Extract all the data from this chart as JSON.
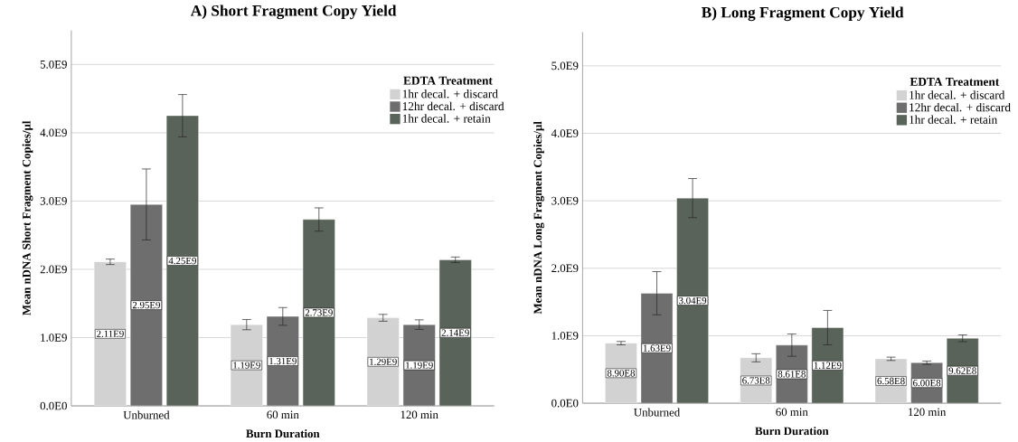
{
  "chart_data": [
    {
      "type": "bar",
      "title": "A) Short Fragment Copy Yield",
      "xlabel": "Burn Duration",
      "ylabel": "Mean nDNA Short Fragment Copies/µl",
      "legend_title": "EDTA Treatment",
      "categories": [
        "Unburned",
        "60 min",
        "120 min"
      ],
      "series": [
        {
          "name": "1hr decal. + discard",
          "color": "#d2d2d2",
          "values": [
            2110000000.0,
            1190000000.0,
            1290000000.0
          ],
          "errors": [
            40000000.0,
            75000000.0,
            50000000.0
          ],
          "value_labels": [
            "2.11E9",
            "1.19E9",
            "1.29E9"
          ]
        },
        {
          "name": "12hr decal. + discard",
          "color": "#6e6e6e",
          "values": [
            2950000000.0,
            1310000000.0,
            1190000000.0
          ],
          "errors": [
            520000000.0,
            130000000.0,
            70000000.0
          ],
          "value_labels": [
            "2.95E9",
            "1.31E9",
            "1.19E9"
          ]
        },
        {
          "name": "1hr decal. + retain",
          "color": "#5a6359",
          "values": [
            4250000000.0,
            2730000000.0,
            2140000000.0
          ],
          "errors": [
            310000000.0,
            170000000.0,
            40000000.0
          ],
          "value_labels": [
            "4.25E9",
            "2.73E9",
            "2.14E9"
          ]
        }
      ],
      "ylim": [
        0,
        5500000000.0
      ],
      "yticks": [
        {
          "value": 0,
          "label": "0.0E0"
        },
        {
          "value": 1000000000.0,
          "label": "1.0E9"
        },
        {
          "value": 2000000000.0,
          "label": "2.0E9"
        },
        {
          "value": 3000000000.0,
          "label": "3.0E9"
        },
        {
          "value": 4000000000.0,
          "label": "4.0E9"
        },
        {
          "value": 5000000000.0,
          "label": "5.0E9"
        }
      ],
      "grid": "y",
      "legend": "top right"
    },
    {
      "type": "bar",
      "title": "B) Long Fragment Copy Yield",
      "xlabel": "Burn Duration",
      "ylabel": "Mean nDNA Long Fragment Copies/µl",
      "legend_title": "EDTA Treatment",
      "categories": [
        "Unburned",
        "60 min",
        "120 min"
      ],
      "series": [
        {
          "name": "1hr decal. + discard",
          "color": "#d2d2d2",
          "values": [
            890000000.0,
            673000000.0,
            658000000.0
          ],
          "errors": [
            25000000.0,
            60000000.0,
            25000000.0
          ],
          "value_labels": [
            "8.90E8",
            "6.73E8",
            "6.58E8"
          ]
        },
        {
          "name": "12hr decal. + discard",
          "color": "#6e6e6e",
          "values": [
            1630000000.0,
            861000000.0,
            600000000.0
          ],
          "errors": [
            320000000.0,
            165000000.0,
            25000000.0
          ],
          "value_labels": [
            "1.63E9",
            "8.61E8",
            "6.00E8"
          ]
        },
        {
          "name": "1hr decal. + retain",
          "color": "#5a6359",
          "values": [
            3040000000.0,
            1120000000.0,
            962000000.0
          ],
          "errors": [
            290000000.0,
            255000000.0,
            50000000.0
          ],
          "value_labels": [
            "3.04E9",
            "1.12E9",
            "9.62E8"
          ]
        }
      ],
      "ylim": [
        0,
        5500000000.0
      ],
      "yticks": [
        {
          "value": 0,
          "label": "0.0E0"
        },
        {
          "value": 1000000000.0,
          "label": "1.0E9"
        },
        {
          "value": 2000000000.0,
          "label": "2.0E9"
        },
        {
          "value": 3000000000.0,
          "label": "3.0E9"
        },
        {
          "value": 4000000000.0,
          "label": "4.0E9"
        },
        {
          "value": 5000000000.0,
          "label": "5.0E9"
        }
      ],
      "grid": "y",
      "legend": "top right"
    }
  ]
}
